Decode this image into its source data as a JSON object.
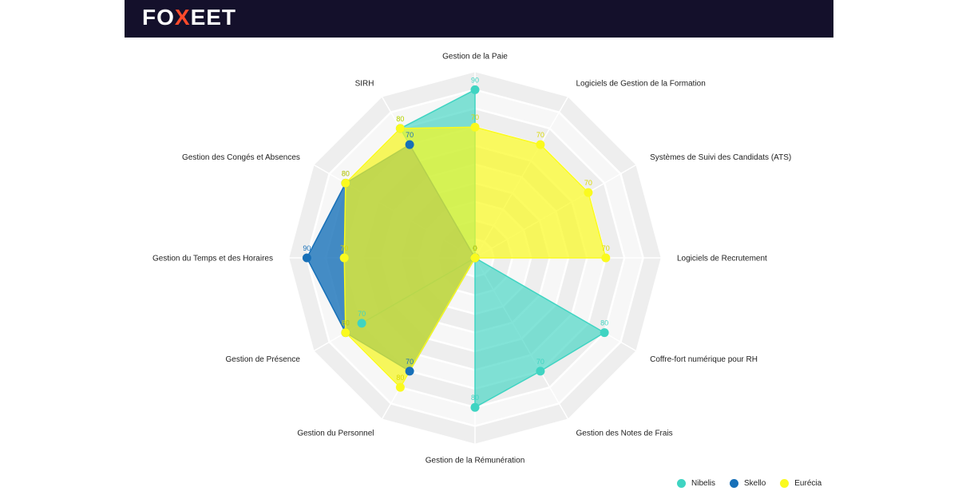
{
  "header": {
    "logo_parts": [
      "FO",
      "X",
      "EET"
    ],
    "background_color": "#14102b",
    "accent_color": "#ff4a2b"
  },
  "chart_data": {
    "type": "radar",
    "title": "",
    "rmax": 100,
    "rings": 10,
    "categories": [
      "Gestion de la Paie",
      "Logiciels de Gestion de la Formation",
      "Systèmes de Suivi des Candidats (ATS)",
      "Logiciels de Recrutement",
      "Coffre-fort numérique pour RH",
      "Gestion des Notes de Frais",
      "Gestion de la Rémunération",
      "Gestion du Personnel",
      "Gestion de Présence",
      "Gestion du Temps et des Horaires",
      "Gestion des Congés et Absences",
      "SIRH"
    ],
    "series": [
      {
        "name": "Nibelis",
        "color": "#3fd4c2",
        "fill_opacity": 0.65,
        "values": [
          90,
          0,
          0,
          0,
          80,
          70,
          80,
          0,
          70,
          0,
          0,
          80
        ]
      },
      {
        "name": "Skello",
        "color": "#1770b8",
        "fill_opacity": 0.8,
        "values": [
          0,
          0,
          0,
          0,
          0,
          0,
          0,
          70,
          80,
          90,
          80,
          70
        ]
      },
      {
        "name": "Eurécia",
        "color": "#fafa1e",
        "fill_opacity": 0.7,
        "values": [
          70,
          70,
          70,
          70,
          0,
          0,
          0,
          80,
          80,
          70,
          80,
          80
        ]
      }
    ],
    "legend_position": "bottom-right"
  }
}
